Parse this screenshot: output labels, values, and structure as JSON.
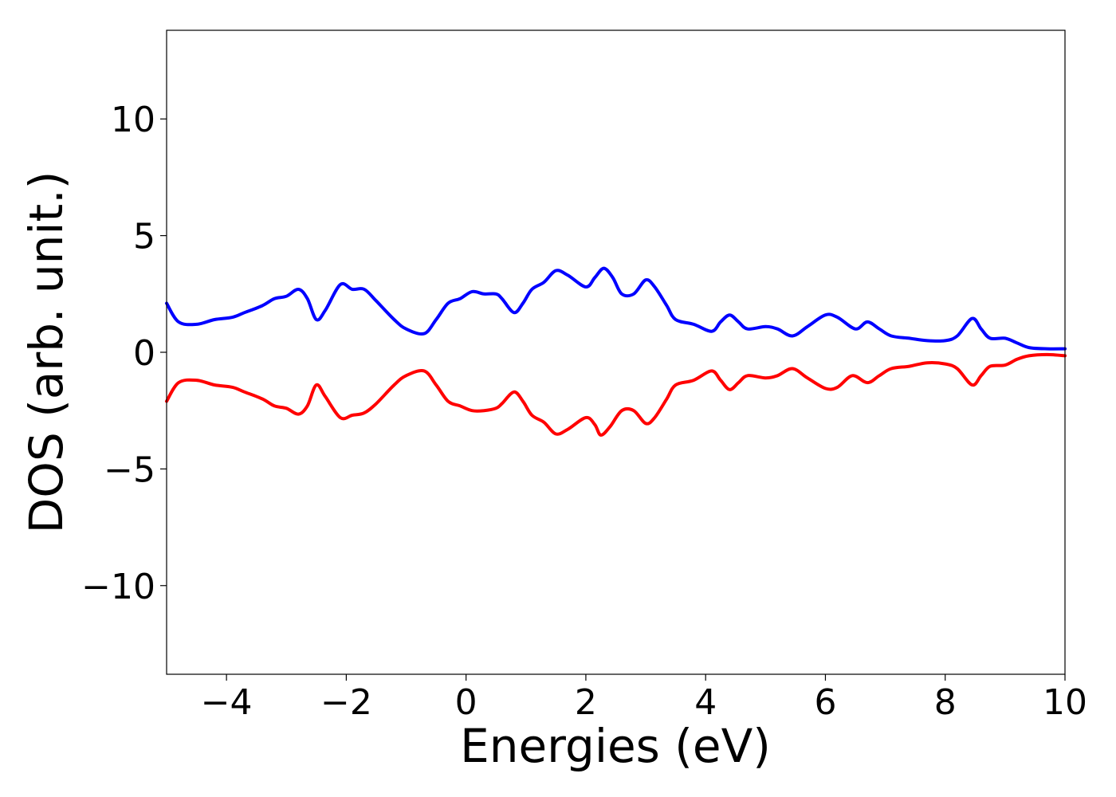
{
  "chart_data": {
    "type": "line",
    "title": "",
    "xlabel": "Energies (eV)",
    "ylabel": "DOS (arb. unit.)",
    "xlim": [
      -5,
      10
    ],
    "ylim": [
      -13.8,
      13.8
    ],
    "x_ticks": [
      -4,
      -2,
      0,
      2,
      4,
      6,
      8,
      10
    ],
    "x_tick_labels": [
      "−4",
      "−2",
      "0",
      "2",
      "4",
      "6",
      "8",
      "10"
    ],
    "y_ticks": [
      -10,
      -5,
      0,
      5,
      10
    ],
    "y_tick_labels": [
      "−10",
      "−5",
      "0",
      "5",
      "10"
    ],
    "grid": false,
    "legend": false,
    "series": [
      {
        "color": "#0000ff",
        "points": [
          [
            -5.0,
            2.1
          ],
          [
            -4.8,
            1.3
          ],
          [
            -4.5,
            1.2
          ],
          [
            -4.2,
            1.4
          ],
          [
            -3.9,
            1.5
          ],
          [
            -3.7,
            1.7
          ],
          [
            -3.4,
            2.0
          ],
          [
            -3.2,
            2.3
          ],
          [
            -3.0,
            2.4
          ],
          [
            -2.8,
            2.7
          ],
          [
            -2.65,
            2.3
          ],
          [
            -2.5,
            1.4
          ],
          [
            -2.35,
            1.8
          ],
          [
            -2.1,
            2.9
          ],
          [
            -1.9,
            2.7
          ],
          [
            -1.7,
            2.7
          ],
          [
            -1.5,
            2.2
          ],
          [
            -1.2,
            1.4
          ],
          [
            -1.0,
            1.0
          ],
          [
            -0.7,
            0.8
          ],
          [
            -0.5,
            1.4
          ],
          [
            -0.3,
            2.1
          ],
          [
            -0.1,
            2.3
          ],
          [
            0.1,
            2.6
          ],
          [
            0.3,
            2.5
          ],
          [
            0.5,
            2.5
          ],
          [
            0.6,
            2.3
          ],
          [
            0.8,
            1.7
          ],
          [
            0.95,
            2.1
          ],
          [
            1.1,
            2.7
          ],
          [
            1.3,
            3.0
          ],
          [
            1.5,
            3.5
          ],
          [
            1.7,
            3.3
          ],
          [
            2.0,
            2.8
          ],
          [
            2.15,
            3.2
          ],
          [
            2.3,
            3.6
          ],
          [
            2.45,
            3.2
          ],
          [
            2.6,
            2.5
          ],
          [
            2.8,
            2.5
          ],
          [
            3.0,
            3.1
          ],
          [
            3.15,
            2.8
          ],
          [
            3.35,
            2.0
          ],
          [
            3.5,
            1.4
          ],
          [
            3.8,
            1.2
          ],
          [
            4.1,
            0.9
          ],
          [
            4.25,
            1.3
          ],
          [
            4.4,
            1.6
          ],
          [
            4.55,
            1.3
          ],
          [
            4.7,
            1.0
          ],
          [
            5.0,
            1.1
          ],
          [
            5.2,
            1.0
          ],
          [
            5.45,
            0.7
          ],
          [
            5.7,
            1.1
          ],
          [
            6.0,
            1.6
          ],
          [
            6.2,
            1.5
          ],
          [
            6.5,
            1.0
          ],
          [
            6.7,
            1.3
          ],
          [
            6.9,
            1.0
          ],
          [
            7.1,
            0.7
          ],
          [
            7.4,
            0.6
          ],
          [
            7.7,
            0.5
          ],
          [
            8.0,
            0.5
          ],
          [
            8.2,
            0.7
          ],
          [
            8.45,
            1.45
          ],
          [
            8.6,
            1.0
          ],
          [
            8.75,
            0.6
          ],
          [
            9.0,
            0.6
          ],
          [
            9.2,
            0.4
          ],
          [
            9.4,
            0.2
          ],
          [
            9.7,
            0.15
          ],
          [
            10.0,
            0.15
          ]
        ]
      },
      {
        "color": "#ff0000",
        "points": [
          [
            -5.0,
            -2.1
          ],
          [
            -4.8,
            -1.3
          ],
          [
            -4.5,
            -1.2
          ],
          [
            -4.2,
            -1.4
          ],
          [
            -3.9,
            -1.5
          ],
          [
            -3.7,
            -1.7
          ],
          [
            -3.4,
            -2.0
          ],
          [
            -3.2,
            -2.3
          ],
          [
            -3.0,
            -2.4
          ],
          [
            -2.8,
            -2.65
          ],
          [
            -2.65,
            -2.3
          ],
          [
            -2.5,
            -1.4
          ],
          [
            -2.35,
            -1.9
          ],
          [
            -2.1,
            -2.8
          ],
          [
            -1.9,
            -2.7
          ],
          [
            -1.7,
            -2.6
          ],
          [
            -1.5,
            -2.2
          ],
          [
            -1.2,
            -1.4
          ],
          [
            -1.0,
            -1.0
          ],
          [
            -0.7,
            -0.8
          ],
          [
            -0.5,
            -1.4
          ],
          [
            -0.3,
            -2.1
          ],
          [
            -0.1,
            -2.3
          ],
          [
            0.1,
            -2.5
          ],
          [
            0.3,
            -2.5
          ],
          [
            0.5,
            -2.4
          ],
          [
            0.6,
            -2.2
          ],
          [
            0.8,
            -1.7
          ],
          [
            0.95,
            -2.1
          ],
          [
            1.1,
            -2.7
          ],
          [
            1.3,
            -3.0
          ],
          [
            1.5,
            -3.5
          ],
          [
            1.7,
            -3.3
          ],
          [
            2.0,
            -2.8
          ],
          [
            2.15,
            -3.1
          ],
          [
            2.25,
            -3.55
          ],
          [
            2.4,
            -3.2
          ],
          [
            2.6,
            -2.5
          ],
          [
            2.8,
            -2.5
          ],
          [
            3.0,
            -3.05
          ],
          [
            3.15,
            -2.8
          ],
          [
            3.35,
            -2.0
          ],
          [
            3.5,
            -1.4
          ],
          [
            3.8,
            -1.2
          ],
          [
            4.1,
            -0.8
          ],
          [
            4.25,
            -1.2
          ],
          [
            4.4,
            -1.6
          ],
          [
            4.55,
            -1.3
          ],
          [
            4.7,
            -1.0
          ],
          [
            5.0,
            -1.1
          ],
          [
            5.2,
            -1.0
          ],
          [
            5.45,
            -0.7
          ],
          [
            5.7,
            -1.1
          ],
          [
            6.0,
            -1.55
          ],
          [
            6.2,
            -1.5
          ],
          [
            6.45,
            -1.0
          ],
          [
            6.7,
            -1.3
          ],
          [
            6.9,
            -1.0
          ],
          [
            7.1,
            -0.7
          ],
          [
            7.4,
            -0.6
          ],
          [
            7.7,
            -0.45
          ],
          [
            8.0,
            -0.5
          ],
          [
            8.2,
            -0.7
          ],
          [
            8.45,
            -1.4
          ],
          [
            8.6,
            -1.0
          ],
          [
            8.75,
            -0.6
          ],
          [
            9.0,
            -0.55
          ],
          [
            9.2,
            -0.3
          ],
          [
            9.4,
            -0.15
          ],
          [
            9.7,
            -0.1
          ],
          [
            10.0,
            -0.15
          ]
        ]
      }
    ]
  }
}
